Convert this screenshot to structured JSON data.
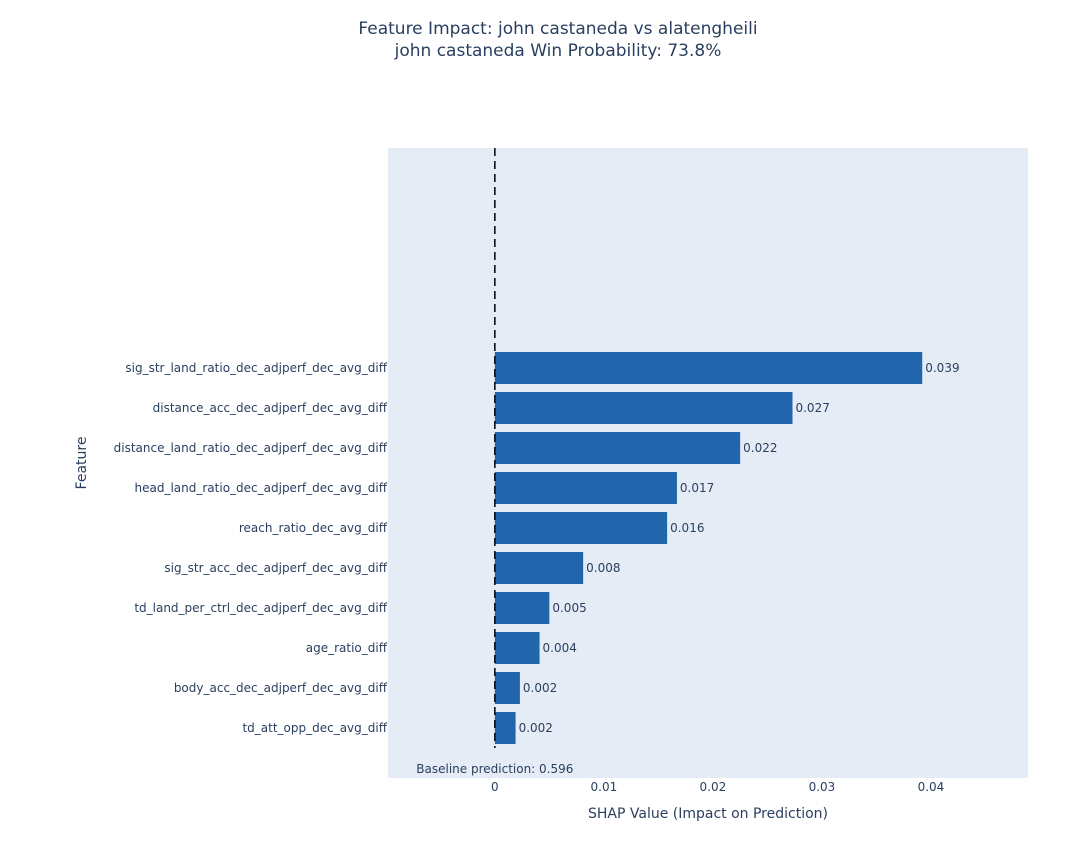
{
  "chart_data": {
    "type": "bar",
    "orientation": "horizontal",
    "title": "Feature Impact: john castaneda vs alatengheili",
    "subtitle": "john castaneda Win Probability: 73.8%",
    "xlabel": "SHAP Value (Impact on Prediction)",
    "ylabel": "Feature",
    "xlim": [
      -0.0098,
      0.0489
    ],
    "xticks": [
      "0",
      "0.01",
      "0.02",
      "0.03",
      "0.04"
    ],
    "grid": false,
    "categories": [
      "sig_str_land_ratio_dec_adjperf_dec_avg_diff",
      "distance_acc_dec_adjperf_dec_avg_diff",
      "distance_land_ratio_dec_adjperf_dec_avg_diff",
      "head_land_ratio_dec_adjperf_dec_avg_diff",
      "reach_ratio_dec_avg_diff",
      "sig_str_acc_dec_adjperf_dec_avg_diff",
      "td_land_per_ctrl_dec_adjperf_dec_avg_diff",
      "age_ratio_diff",
      "body_acc_dec_adjperf_dec_avg_diff",
      "td_att_opp_dec_avg_diff"
    ],
    "values": [
      0.0392,
      0.0273,
      0.0225,
      0.0167,
      0.0158,
      0.0081,
      0.005,
      0.0041,
      0.0023,
      0.0019
    ],
    "labels": [
      "0.039",
      "0.027",
      "0.022",
      "0.017",
      "0.016",
      "0.008",
      "0.005",
      "0.004",
      "0.002",
      "0.002"
    ],
    "reference_line": 0,
    "annotation": "Baseline prediction: 0.596",
    "colors": {
      "bar": "#2166ac",
      "plot_bg": "#e5ecf6",
      "text": "#2a3f5f",
      "reference_line": "#000000"
    }
  }
}
